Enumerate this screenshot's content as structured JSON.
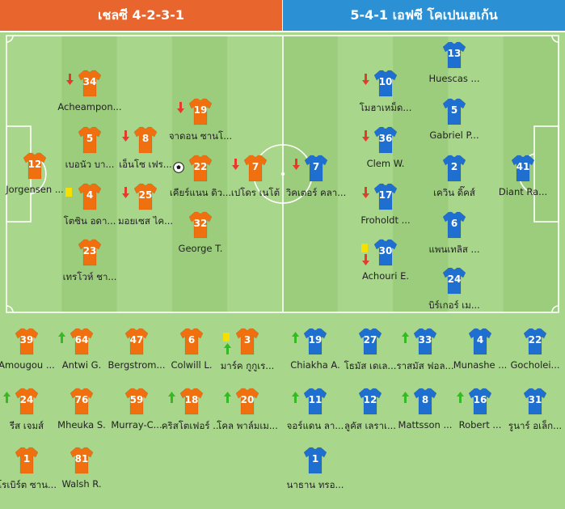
{
  "header": {
    "home": "เชลซี 4-2-3-1",
    "away": "5-4-1 เอฟซี โคเปนเฮเก้น"
  },
  "colors": {
    "home_shirt": "#f07010",
    "away_shirt": "#1f6fd1",
    "pitch_light": "#a8d68a",
    "pitch_dark": "#9ccd7d",
    "sub_in_arrow": "#33bb22",
    "sub_out_arrow": "#e43b2c",
    "yellow_card": "#f5e000"
  },
  "pitch_home": [
    {
      "number": "12",
      "name": "Jorgensen ...",
      "events": []
    },
    {
      "number": "34",
      "name": "Acheampon...",
      "events": [
        "sub-out"
      ]
    },
    {
      "number": "5",
      "name": "เบอนัว บา...",
      "events": []
    },
    {
      "number": "4",
      "name": "โตซิน อดา...",
      "events": [
        "yellow"
      ]
    },
    {
      "number": "23",
      "name": "เทรโวห์ ชา...",
      "events": []
    },
    {
      "number": "8",
      "name": "เอ็นโซ เฟร...",
      "events": [
        "sub-out"
      ]
    },
    {
      "number": "25",
      "name": "มอยเซส ไค...",
      "events": [
        "sub-out"
      ]
    },
    {
      "number": "19",
      "name": "จาดอน ซานโ...",
      "events": [
        "sub-out"
      ]
    },
    {
      "number": "22",
      "name": "เคียร์แนน ดิว...",
      "events": [
        "goal"
      ]
    },
    {
      "number": "32",
      "name": "George T.",
      "events": []
    },
    {
      "number": "7",
      "name": "เปโดร เนโต้",
      "events": [
        "sub-out"
      ]
    }
  ],
  "pitch_away": [
    {
      "number": "7",
      "name": "วิคเตอร์ คลา...",
      "events": [
        "sub-out"
      ]
    },
    {
      "number": "10",
      "name": "โมฮาเหม็ด...",
      "events": [
        "sub-out"
      ]
    },
    {
      "number": "36",
      "name": "Clem W.",
      "events": [
        "sub-out"
      ]
    },
    {
      "number": "17",
      "name": "Froholdt ...",
      "events": [
        "sub-out"
      ]
    },
    {
      "number": "30",
      "name": "Achouri E.",
      "events": [
        "yellow",
        "sub-out"
      ]
    },
    {
      "number": "13",
      "name": "Huescas ...",
      "events": []
    },
    {
      "number": "5",
      "name": "Gabriel P...",
      "events": []
    },
    {
      "number": "2",
      "name": "เควิน ดิ๊คส์",
      "events": []
    },
    {
      "number": "6",
      "name": "แพนเทลิส ...",
      "events": []
    },
    {
      "number": "24",
      "name": "บิร์เกอร์ เม...",
      "events": []
    },
    {
      "number": "41",
      "name": "Diant Ra...",
      "events": []
    }
  ],
  "subs_home": [
    {
      "number": "39",
      "name": "Amougou ...",
      "events": []
    },
    {
      "number": "64",
      "name": "Antwi G.",
      "events": [
        "sub-in"
      ]
    },
    {
      "number": "47",
      "name": "Bergstrom...",
      "events": []
    },
    {
      "number": "6",
      "name": "Colwill L.",
      "events": []
    },
    {
      "number": "3",
      "name": "มาร์ค กูกูเร...",
      "events": [
        "yellow",
        "sub-in"
      ]
    },
    {
      "number": "24",
      "name": "รีส เจมส์",
      "events": [
        "sub-in"
      ]
    },
    {
      "number": "76",
      "name": "Mheuka S.",
      "events": []
    },
    {
      "number": "59",
      "name": "Murray-C...",
      "events": []
    },
    {
      "number": "18",
      "name": "คริสโตเฟอร์ ...",
      "events": [
        "sub-in"
      ]
    },
    {
      "number": "20",
      "name": "โคล พาล์มเม...",
      "events": [
        "sub-in"
      ]
    },
    {
      "number": "1",
      "name": "โรเบิร์ต ซาน...",
      "events": []
    },
    {
      "number": "81",
      "name": "Walsh R.",
      "events": []
    }
  ],
  "subs_away": [
    {
      "number": "19",
      "name": "Chiakha A.",
      "events": [
        "sub-in"
      ]
    },
    {
      "number": "27",
      "name": "โธมัส เดเล...",
      "events": []
    },
    {
      "number": "33",
      "name": "ราสมัส ฟอล...",
      "events": [
        "sub-in"
      ]
    },
    {
      "number": "4",
      "name": "Munashe ...",
      "events": []
    },
    {
      "number": "22",
      "name": "Gocholei...",
      "events": []
    },
    {
      "number": "11",
      "name": "จอร์แดน ลา...",
      "events": [
        "sub-in"
      ]
    },
    {
      "number": "12",
      "name": "ลูคัส เลราเ...",
      "events": []
    },
    {
      "number": "8",
      "name": "Mattsson ...",
      "events": [
        "sub-in"
      ]
    },
    {
      "number": "16",
      "name": "Robert ...",
      "events": [
        "sub-in"
      ]
    },
    {
      "number": "31",
      "name": "รูนาร์ อเล็ก...",
      "events": []
    },
    {
      "number": "1",
      "name": "นาธาน ทรอ...",
      "events": []
    }
  ]
}
